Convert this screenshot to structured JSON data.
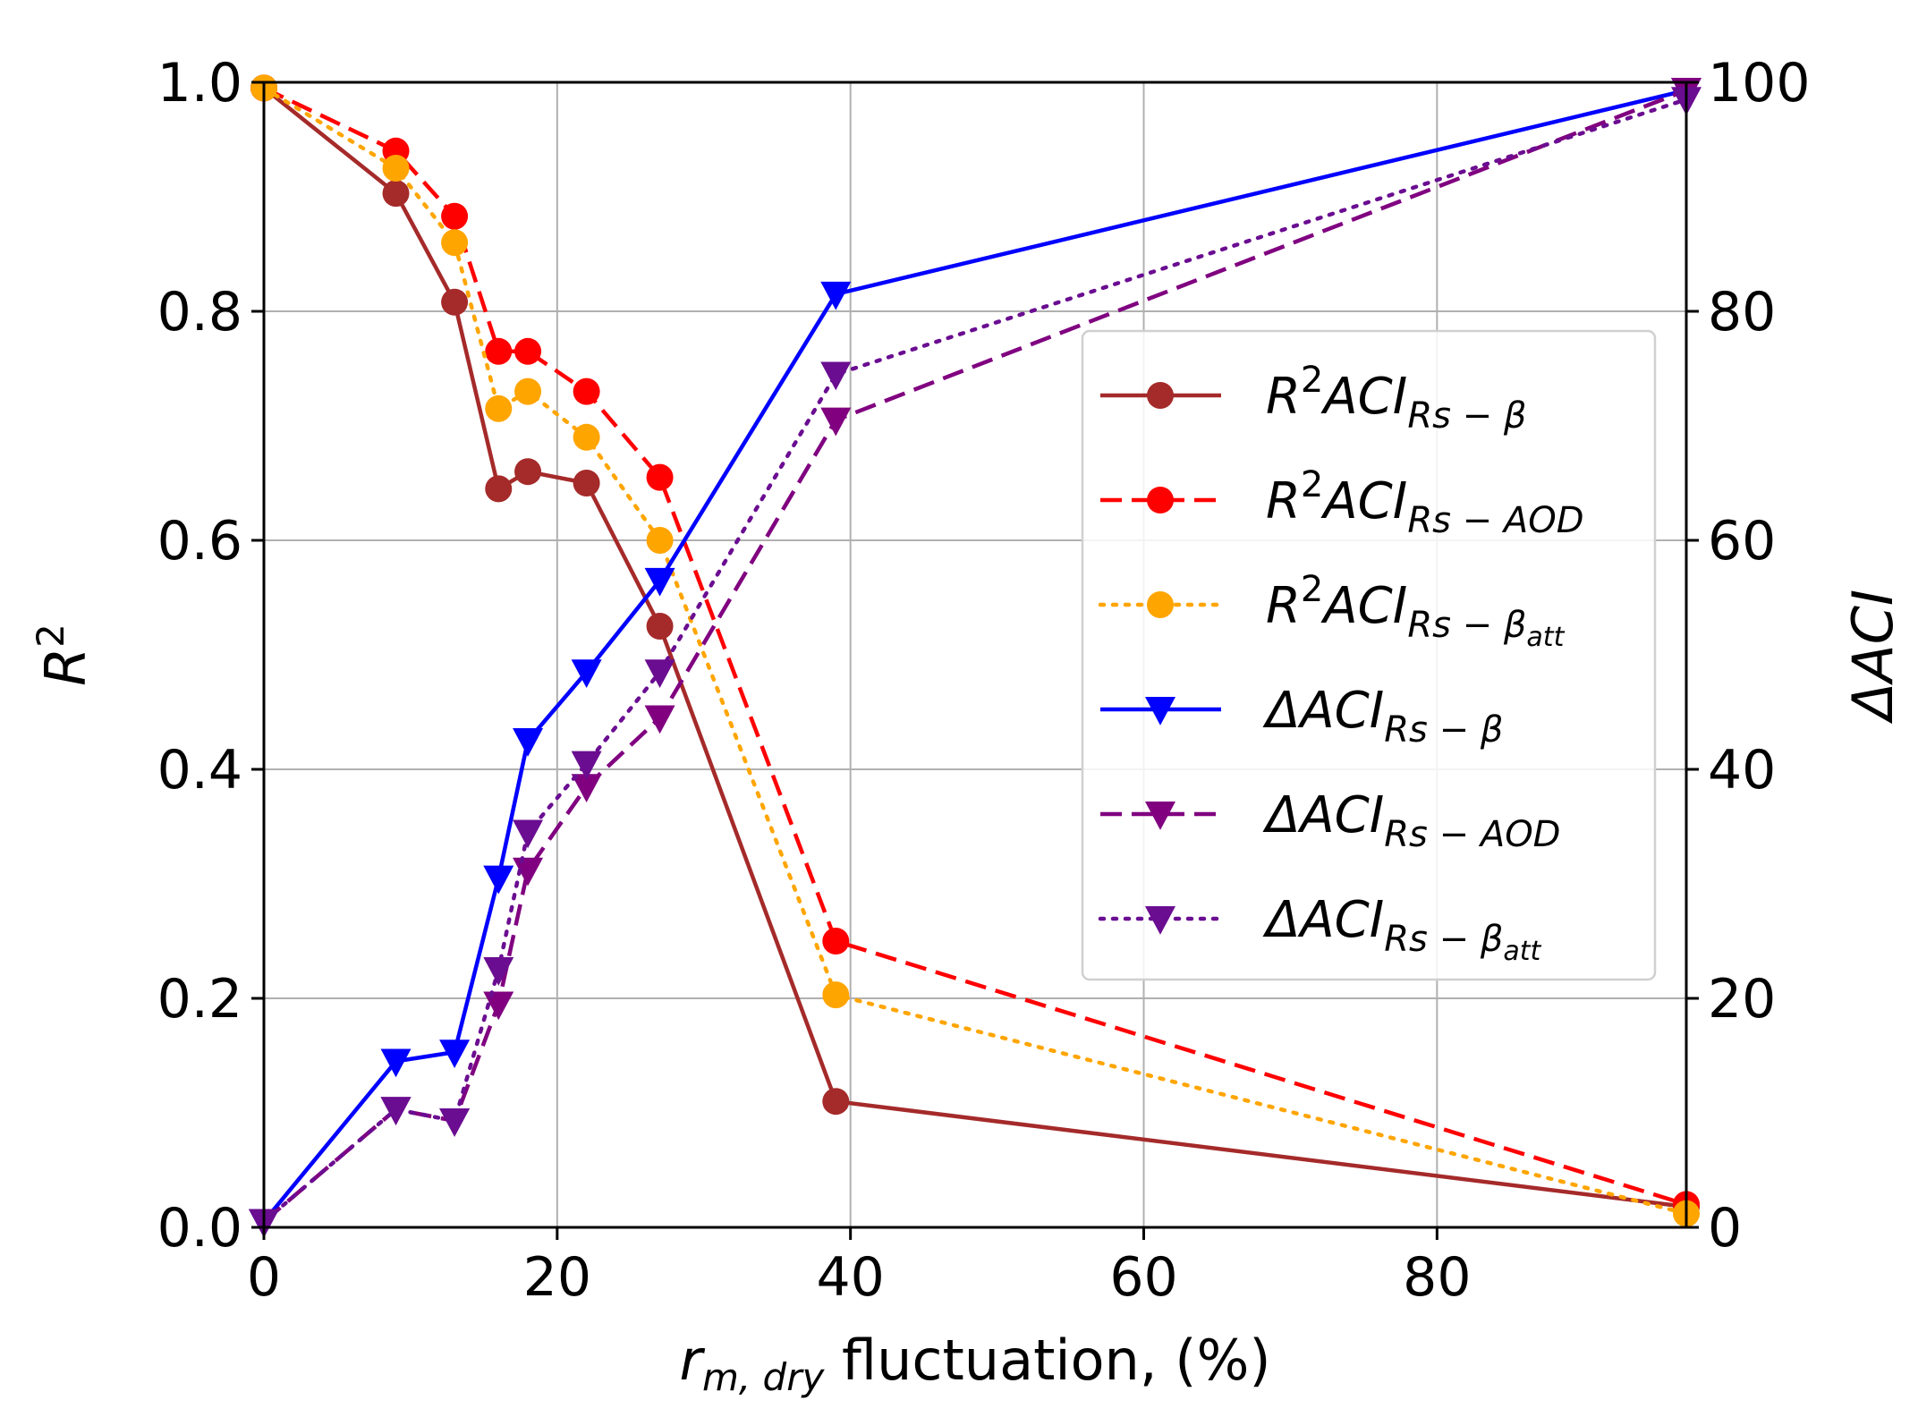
{
  "chart_data": {
    "type": "line",
    "xlabel": {
      "base": "r",
      "sub": "m, dry",
      "rest": " fluctuation, (%)"
    },
    "ylabel_left": {
      "base": "R",
      "sup": "2"
    },
    "ylabel_right": "ΔACI",
    "xlim": [
      0,
      97
    ],
    "ylim_left": [
      0,
      1.0
    ],
    "ylim_right": [
      0,
      100
    ],
    "x_ticks": [
      0,
      20,
      40,
      60,
      80
    ],
    "x_tick_labels": [
      "0",
      "20",
      "40",
      "60",
      "80"
    ],
    "y_left_ticks": [
      0.0,
      0.2,
      0.4,
      0.6,
      0.8,
      1.0
    ],
    "y_left_tick_labels": [
      "0.0",
      "0.2",
      "0.4",
      "0.6",
      "0.8",
      "1.0"
    ],
    "y_right_ticks": [
      0,
      20,
      40,
      60,
      80,
      100
    ],
    "y_right_tick_labels": [
      "0",
      "20",
      "40",
      "60",
      "80",
      "100"
    ],
    "grid": true,
    "legend_position": "center-right",
    "series": [
      {
        "name": "R2ACI_Rs-beta",
        "axis": "left",
        "color": "#a52a2a",
        "dash": "solid",
        "marker": "circle",
        "label": {
          "pre": "R",
          "sup": "2",
          "mid": "ACI",
          "sub": "Rs − β",
          "subsub": ""
        },
        "x": [
          0,
          9,
          13,
          16,
          18,
          22,
          27,
          39,
          97
        ],
        "y": [
          0.995,
          0.903,
          0.808,
          0.645,
          0.66,
          0.65,
          0.525,
          0.11,
          0.018
        ]
      },
      {
        "name": "R2ACI_Rs-AOD",
        "axis": "left",
        "color": "#ff0000",
        "dash": "dashed",
        "marker": "circle",
        "label": {
          "pre": "R",
          "sup": "2",
          "mid": "ACI",
          "sub": "Rs − AOD",
          "subsub": ""
        },
        "x": [
          0,
          9,
          13,
          16,
          18,
          22,
          27,
          39,
          97
        ],
        "y": [
          0.995,
          0.94,
          0.883,
          0.765,
          0.765,
          0.73,
          0.655,
          0.25,
          0.02
        ]
      },
      {
        "name": "R2ACI_Rs-beta_att",
        "axis": "left",
        "color": "#ffa500",
        "dash": "dotted",
        "marker": "circle",
        "label": {
          "pre": "R",
          "sup": "2",
          "mid": "ACI",
          "sub": "Rs − β",
          "subsub": "att"
        },
        "x": [
          0,
          9,
          13,
          16,
          18,
          22,
          27,
          39,
          97
        ],
        "y": [
          0.995,
          0.925,
          0.86,
          0.715,
          0.73,
          0.69,
          0.6,
          0.203,
          0.012
        ]
      },
      {
        "name": "dACI_Rs-beta",
        "axis": "right",
        "color": "#0000ff",
        "dash": "solid",
        "marker": "triangle-down",
        "label": {
          "pre": "Δ",
          "sup": "",
          "mid": "ACI",
          "sub": "Rs − β",
          "subsub": ""
        },
        "x": [
          0,
          9,
          13,
          16,
          18,
          22,
          27,
          39,
          97
        ],
        "y": [
          0.5,
          14.5,
          15.3,
          30.5,
          42.5,
          48.5,
          56.5,
          81.5,
          99.3
        ]
      },
      {
        "name": "dACI_Rs-AOD",
        "axis": "right",
        "color": "#800080",
        "dash": "dashed",
        "marker": "triangle-down",
        "label": {
          "pre": "Δ",
          "sup": "",
          "mid": "ACI",
          "sub": "Rs − AOD",
          "subsub": ""
        },
        "x": [
          0,
          9,
          13,
          16,
          18,
          22,
          27,
          39,
          97
        ],
        "y": [
          0.5,
          10.3,
          9.3,
          19.5,
          31.2,
          38.5,
          44.5,
          70.5,
          99.3
        ]
      },
      {
        "name": "dACI_Rs-beta_att",
        "axis": "right",
        "color": "#6a0d91",
        "dash": "dotted",
        "marker": "triangle-down",
        "label": {
          "pre": "Δ",
          "sup": "",
          "mid": "ACI",
          "sub": "Rs − β",
          "subsub": "att"
        },
        "x": [
          0,
          9,
          13,
          16,
          18,
          22,
          27,
          39,
          97
        ],
        "y": [
          0.5,
          10.3,
          9.3,
          22.5,
          34.5,
          40.5,
          48.5,
          74.5,
          98.5
        ]
      }
    ]
  }
}
